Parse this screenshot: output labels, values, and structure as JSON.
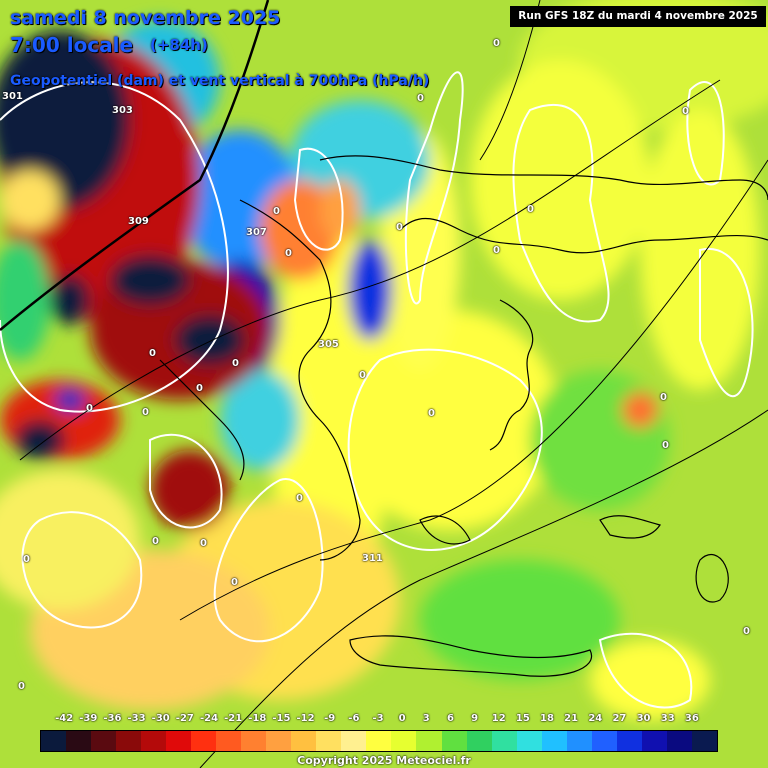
{
  "header": {
    "date": "samedi 8 novembre 2025",
    "local_time": "7:00 locale",
    "lead": "(+84h)",
    "parameter": "Geopotentiel (dam) et vent vertical à 700hPa (hPa/h)",
    "run": "Run GFS 18Z du mardi 4 novembre 2025"
  },
  "contour_labels": [
    {
      "text": "301"
    },
    {
      "text": "303"
    },
    {
      "text": "305"
    },
    {
      "text": "307"
    },
    {
      "text": "309"
    },
    {
      "text": "311"
    },
    {
      "text": "0"
    },
    {
      "text": "0"
    },
    {
      "text": "0"
    },
    {
      "text": "0"
    },
    {
      "text": "0"
    },
    {
      "text": "0"
    },
    {
      "text": "0"
    },
    {
      "text": "0"
    },
    {
      "text": "0"
    },
    {
      "text": "0"
    },
    {
      "text": "0"
    },
    {
      "text": "0"
    },
    {
      "text": "0"
    },
    {
      "text": "0"
    },
    {
      "text": "0"
    },
    {
      "text": "0"
    },
    {
      "text": "0"
    },
    {
      "text": "0"
    },
    {
      "text": "0"
    },
    {
      "text": "0"
    },
    {
      "text": "0"
    },
    {
      "text": "0"
    },
    {
      "text": "0"
    },
    {
      "text": "0"
    }
  ],
  "legend": {
    "ticks": [
      "-42",
      "-39",
      "-36",
      "-33",
      "-30",
      "-27",
      "-24",
      "-21",
      "-18",
      "-15",
      "-12",
      "-9",
      "-6",
      "-3",
      "0",
      "3",
      "6",
      "9",
      "12",
      "15",
      "18",
      "21",
      "24",
      "27",
      "30",
      "33",
      "36"
    ],
    "colors": [
      "#0b1a3c",
      "#2a0a14",
      "#5a0a10",
      "#8a0a0a",
      "#b40a0a",
      "#e00a0a",
      "#ff3010",
      "#ff5a20",
      "#ff8030",
      "#ffa040",
      "#ffc040",
      "#ffe060",
      "#fff090",
      "#ffff40",
      "#e6ff30",
      "#b0f030",
      "#60e040",
      "#30d060",
      "#30e0a0",
      "#30e0e0",
      "#20c0ff",
      "#2090ff",
      "#2060ff",
      "#1030e0",
      "#1010b0",
      "#0a0a80",
      "#0a1a50"
    ]
  },
  "copyright": "Copyright 2025 Meteociel.fr"
}
